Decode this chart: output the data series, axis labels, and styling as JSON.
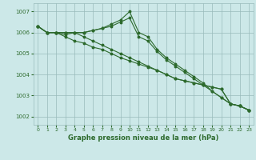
{
  "bg_color": "#cce8e8",
  "grid_color": "#99bbbb",
  "line_color": "#2d6a2d",
  "title": "Graphe pression niveau de la mer (hPa)",
  "xlim": [
    -0.5,
    23.5
  ],
  "ylim": [
    1001.6,
    1007.4
  ],
  "yticks": [
    1002,
    1003,
    1004,
    1005,
    1006,
    1007
  ],
  "xticks": [
    0,
    1,
    2,
    3,
    4,
    5,
    6,
    7,
    8,
    9,
    10,
    11,
    12,
    13,
    14,
    15,
    16,
    17,
    18,
    19,
    20,
    21,
    22,
    23
  ],
  "series": [
    [
      1006.3,
      1006.0,
      1006.0,
      1006.0,
      1006.0,
      1005.8,
      1005.6,
      1005.4,
      1005.2,
      1005.0,
      1004.8,
      1004.6,
      1004.4,
      1004.2,
      1004.0,
      1003.8,
      1003.7,
      1003.6,
      1003.5,
      1003.4,
      1003.3,
      1002.6,
      1002.5,
      1002.3
    ],
    [
      1006.3,
      1006.0,
      1006.0,
      1006.0,
      1006.0,
      1006.0,
      1006.1,
      1006.2,
      1006.4,
      1006.6,
      1007.0,
      1006.0,
      1005.8,
      1005.2,
      1004.8,
      1004.5,
      1004.2,
      1003.9,
      1003.6,
      1003.2,
      1002.9,
      1002.6,
      1002.5,
      1002.3
    ],
    [
      1006.3,
      1006.0,
      1006.0,
      1005.8,
      1005.6,
      1005.5,
      1005.3,
      1005.2,
      1005.0,
      1004.8,
      1004.65,
      1004.5,
      1004.35,
      1004.2,
      1004.0,
      1003.8,
      1003.7,
      1003.6,
      1003.5,
      1003.4,
      1003.3,
      1002.6,
      1002.5,
      1002.3
    ],
    [
      1006.3,
      1006.0,
      1006.0,
      1005.9,
      1006.0,
      1006.0,
      1006.1,
      1006.2,
      1006.3,
      1006.5,
      1006.7,
      1005.8,
      1005.6,
      1005.1,
      1004.7,
      1004.4,
      1004.1,
      1003.8,
      1003.5,
      1003.2,
      1002.9,
      1002.6,
      1002.5,
      1002.3
    ]
  ]
}
